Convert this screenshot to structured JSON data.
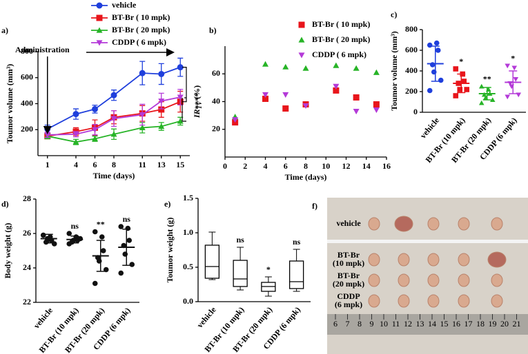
{
  "chart_data": [
    {
      "type": "line",
      "panel_label": "a)",
      "xlabel": "Time (days)",
      "ylabel": "Toumor volume (mm³)",
      "annotation": "Administration",
      "significance": "****",
      "x": [
        1,
        4,
        6,
        8,
        11,
        13,
        15
      ],
      "xlim": [
        0,
        16
      ],
      "xticks": [
        1,
        4,
        6,
        8,
        11,
        13,
        15
      ],
      "ylim": [
        0,
        800
      ],
      "yticks": [
        200,
        400,
        600,
        800
      ],
      "series": [
        {
          "name": "vehicle",
          "color": "#1f3fdc",
          "marker": "circle",
          "values": [
            205,
            320,
            358,
            465,
            635,
            628,
            680
          ],
          "errors": [
            30,
            40,
            30,
            40,
            90,
            80,
            70
          ]
        },
        {
          "name": "BT-Br ( 10 mpk)",
          "color": "#e8151b",
          "marker": "square",
          "values": [
            150,
            185,
            215,
            295,
            325,
            355,
            415
          ],
          "errors": [
            20,
            30,
            60,
            50,
            60,
            60,
            80
          ]
        },
        {
          "name": "BT-Br ( 20 mpk)",
          "color": "#27b427",
          "marker": "triangle",
          "values": [
            150,
            105,
            130,
            165,
            215,
            225,
            265
          ],
          "errors": [
            20,
            20,
            20,
            40,
            40,
            30,
            30
          ]
        },
        {
          "name": "CDDP ( 6 mpk)",
          "color": "#b43ad8",
          "marker": "tri_down",
          "values": [
            160,
            165,
            200,
            285,
            315,
            420,
            450
          ],
          "errors": [
            20,
            20,
            40,
            60,
            80,
            60,
            60
          ]
        }
      ]
    },
    {
      "type": "scatter",
      "panel_label": "b)",
      "xlabel": "Time (days)",
      "ylabel": "IR",
      "ylabel_sub": "TV",
      "ylabel_unit": " (%)",
      "xlim": [
        0,
        16
      ],
      "xticks": [
        0,
        2,
        4,
        6,
        8,
        10,
        12,
        14,
        16
      ],
      "ylim": [
        0,
        80
      ],
      "yticks": [
        20,
        40,
        60
      ],
      "x": [
        1,
        4,
        6,
        8,
        11,
        13,
        15
      ],
      "series": [
        {
          "name": "BT-Br ( 10 mpk)",
          "color": "#e8151b",
          "marker": "square",
          "values": [
            25,
            42,
            35,
            38,
            48,
            43,
            38
          ]
        },
        {
          "name": "BT-Br ( 20 mpk)",
          "color": "#27b427",
          "marker": "triangle",
          "values": [
            29,
            67,
            65,
            64,
            66,
            64,
            61
          ]
        },
        {
          "name": "CDDP ( 6 mpk)",
          "color": "#b43ad8",
          "marker": "tri_down",
          "values": [
            27,
            45,
            45,
            37,
            51,
            33,
            34
          ]
        }
      ]
    },
    {
      "type": "strip",
      "panel_label": "c)",
      "ylabel": "Toumor volume (mm³)",
      "categories": [
        "vehicle",
        "BT-Br (10 mpk)",
        "BT-Br (20 mpk)",
        "CDDP (6 mpk)"
      ],
      "colors": [
        "#1f3fdc",
        "#e8151b",
        "#27b427",
        "#b43ad8"
      ],
      "markers": [
        "circle",
        "square",
        "triangle",
        "tri_down"
      ],
      "ylim": [
        0,
        800
      ],
      "yticks": [
        0,
        200,
        400,
        600,
        800
      ],
      "points": [
        [
          650,
          670,
          600,
          460,
          390,
          310,
          210
        ],
        [
          420,
          370,
          300,
          280,
          220,
          220,
          160
        ],
        [
          250,
          220,
          180,
          170,
          140,
          120,
          90
        ],
        [
          450,
          430,
          320,
          280,
          250,
          170,
          150
        ]
      ],
      "mean": [
        470,
        280,
        180,
        290
      ],
      "sd": [
        170,
        90,
        60,
        110
      ],
      "annotations": [
        null,
        "*",
        "**",
        "*"
      ]
    },
    {
      "type": "strip",
      "panel_label": "d)",
      "ylabel": "Body weight (g)",
      "categories": [
        "vehicle",
        "BT-Br (10 mpk)",
        "BT-Br (20 mpk)",
        "CDDP (6 mpk)"
      ],
      "colors": [
        "#111111",
        "#111111",
        "#111111",
        "#111111"
      ],
      "markers": [
        "circle",
        "circle",
        "circle",
        "circle"
      ],
      "ylim": [
        22,
        28
      ],
      "yticks": [
        22,
        24,
        26,
        28
      ],
      "points": [
        [
          25.9,
          25.8,
          25.6,
          25.5,
          25.7,
          25.4,
          25.9
        ],
        [
          26.0,
          25.8,
          25.6,
          25.5,
          25.6,
          25.7,
          25.4
        ],
        [
          26.1,
          25.8,
          25.0,
          24.6,
          24.4,
          23.9,
          23.1
        ],
        [
          26.4,
          26.3,
          25.6,
          25.3,
          24.8,
          24.2,
          23.7
        ]
      ],
      "mean": [
        25.7,
        25.65,
        24.7,
        25.2
      ],
      "sd": [
        0.25,
        0.2,
        0.9,
        1.05
      ],
      "annotations": [
        null,
        "ns",
        "**",
        "ns"
      ]
    },
    {
      "type": "box",
      "panel_label": "e)",
      "ylabel": "Toumor weight (g)",
      "categories": [
        "vehicle",
        "BT-Br (10 mpk)",
        "BT-Br (20 mpk)",
        "CDDP (6 mpk)"
      ],
      "ylim": [
        0,
        1.5
      ],
      "yticks": [
        {
          "value": 0,
          "label": "0.0"
        },
        {
          "value": 0.5,
          "label": "0.5"
        },
        {
          "value": 1,
          "label": "1.0"
        },
        {
          "value": 1.5,
          "label": "1.5"
        }
      ],
      "min": [
        0.32,
        0.17,
        0.08,
        0.15
      ],
      "q1": [
        0.34,
        0.22,
        0.15,
        0.19
      ],
      "median": [
        0.51,
        0.33,
        0.22,
        0.29
      ],
      "q3": [
        0.82,
        0.6,
        0.28,
        0.59
      ],
      "max": [
        1.01,
        0.79,
        0.36,
        0.76
      ],
      "annotations": [
        null,
        "ns",
        "*",
        "ns"
      ]
    }
  ],
  "photo": {
    "panel_label": "f)",
    "rows": [
      "vehicle",
      "BT-Br\n(10 mpk)",
      "BT-Br\n(20 mpk)",
      "CDDP\n(6 mpk)"
    ],
    "ruler": [
      6,
      7,
      8,
      9,
      10,
      11,
      12,
      13,
      14,
      15,
      16,
      17,
      18,
      19,
      20,
      21
    ]
  }
}
